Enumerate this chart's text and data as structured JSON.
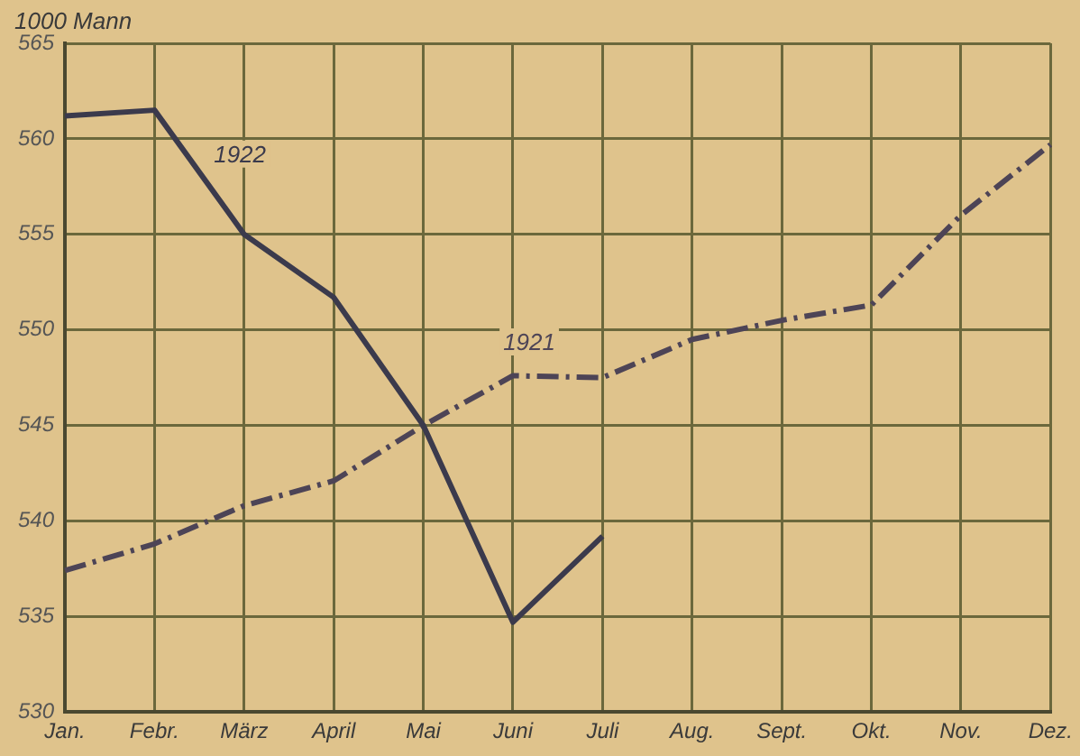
{
  "chart_data": {
    "type": "line",
    "ylabel": "1000 Mann",
    "categories": [
      "Jan.",
      "Febr.",
      "März",
      "April",
      "Mai",
      "Juni",
      "Juli",
      "Aug.",
      "Sept.",
      "Okt.",
      "Nov.",
      "Dez."
    ],
    "series": [
      {
        "name": "1922",
        "color": "#3b3a4c",
        "line_style": "solid",
        "values": [
          561.2,
          561.5,
          555,
          551.7,
          545,
          534.7,
          539.2,
          null,
          null,
          null,
          null,
          null
        ]
      },
      {
        "name": "1921",
        "color": "#4d4456",
        "line_style": "dashed",
        "values": [
          537.4,
          538.8,
          540.8,
          542.1,
          545,
          547.6,
          547.5,
          549.5,
          550.5,
          551.3,
          556,
          559.7
        ]
      }
    ],
    "ylim": [
      530,
      565
    ],
    "yticks": [
      530,
      535,
      540,
      545,
      550,
      555,
      560,
      565
    ],
    "grid": true,
    "legend": false,
    "marker": "none"
  }
}
